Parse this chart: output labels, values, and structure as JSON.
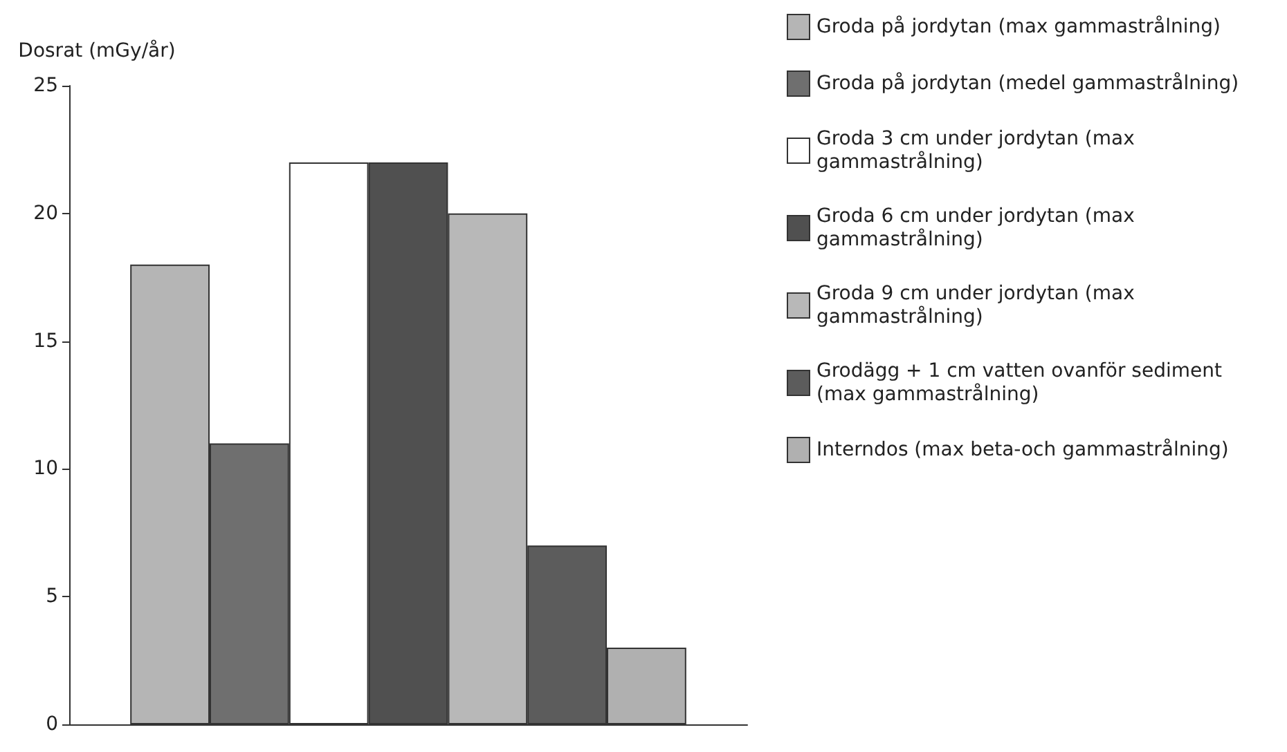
{
  "chart_data": {
    "type": "bar",
    "ylabel": "Dosrat (mGy/år)",
    "categories": [
      null
    ],
    "series": [
      {
        "name": "Groda på jordytan (max gammastrålning)",
        "color": "#b5b5b5",
        "values": [
          18
        ]
      },
      {
        "name": "Groda på jordytan (medel gammastrålning)",
        "color": "#6f6f6f",
        "values": [
          11
        ]
      },
      {
        "name": "Groda 3 cm under jordytan (max gammastrålning)",
        "color": "#ffffff",
        "values": [
          22
        ]
      },
      {
        "name": "Groda 6 cm under jordytan (max gammastrålning)",
        "color": "#505050",
        "values": [
          22
        ]
      },
      {
        "name": "Groda 9 cm under jordytan (max gammastrålning)",
        "color": "#b8b8b8",
        "values": [
          20
        ]
      },
      {
        "name": "Grodägg + 1 cm vatten ovanför sediment (max gammastrålning)",
        "color": "#5c5c5c",
        "values": [
          7
        ]
      },
      {
        "name": "Interndos (max beta-och gammastrålning)",
        "color": "#b0b0b0",
        "values": [
          3
        ]
      }
    ],
    "ylim": [
      0,
      25
    ],
    "yticks": [
      0,
      5,
      10,
      15,
      20,
      25
    ],
    "grid": false,
    "legend": "right"
  }
}
